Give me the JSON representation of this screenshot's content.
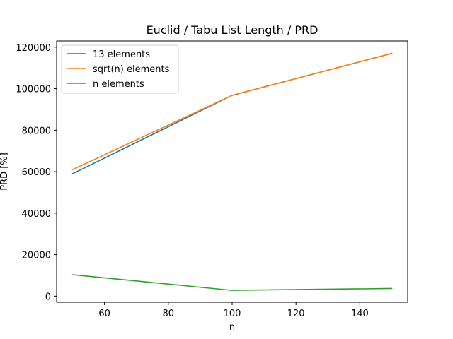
{
  "chart_data": {
    "type": "line",
    "title": "Euclid / Tabu List Length / PRD",
    "xlabel": "n",
    "ylabel": "PRD [%]",
    "x": [
      50,
      100,
      150
    ],
    "xlim": [
      45,
      155
    ],
    "ylim": [
      -2950,
      123000
    ],
    "xticks": [
      60,
      80,
      100,
      120,
      140
    ],
    "yticks": [
      0,
      20000,
      40000,
      60000,
      80000,
      100000,
      120000
    ],
    "grid": false,
    "legend_position": "upper-left",
    "series": [
      {
        "name": "13 elements",
        "color": "#1f77b4",
        "values": [
          59000,
          96800,
          117000
        ]
      },
      {
        "name": "sqrt(n) elements",
        "color": "#ff7f0e",
        "values": [
          61000,
          96800,
          117000
        ]
      },
      {
        "name": "n elements",
        "color": "#2ca02c",
        "values": [
          10300,
          2800,
          3700
        ]
      }
    ]
  }
}
